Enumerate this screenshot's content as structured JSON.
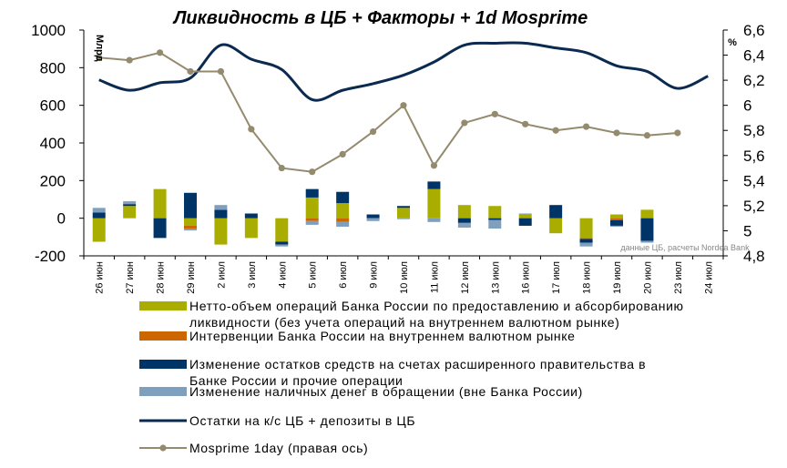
{
  "colors": {
    "net": "#a8ad00",
    "interv": "#cc6600",
    "gov": "#003366",
    "cash": "#7f9fbf",
    "balance": "#0a2a50",
    "mosprime": "#948a6e"
  },
  "chart_data": {
    "type": "bar",
    "title": "Ликвидность в ЦБ + Факторы + 1d Mosprime",
    "left_axis_unit": "Млрд",
    "right_axis_unit": "%",
    "source_note": "данные ЦБ, расчеты Nordea Bank",
    "ylim": [
      -200,
      1000
    ],
    "yticks": [
      "1000",
      "800",
      "600",
      "400",
      "200",
      "0",
      "-200"
    ],
    "y2lim": [
      4.8,
      6.6
    ],
    "y2ticks": [
      "6,6",
      "6,4",
      "6,2",
      "6",
      "5,8",
      "5,6",
      "5,4",
      "5,2",
      "5",
      "4,8"
    ],
    "categories": [
      "26 июн",
      "27 июн",
      "28 июн",
      "29 июн",
      "2 июл",
      "3 июл",
      "4 июл",
      "5 июл",
      "6 июл",
      "9 июл",
      "10 июл",
      "11 июл",
      "12 июл",
      "13 июл",
      "16 июл",
      "17 июл",
      "18 июл",
      "19 июл",
      "20 июл",
      "23 июл",
      "24 июл"
    ],
    "series": [
      {
        "name": "Нетто-объем операций Банка России по предоставлению и абсорбированию ликвидности (без учета операций на внутреннем валютном рынке)",
        "kind": "bar",
        "color_key": "net",
        "values": [
          -125,
          65,
          155,
          -40,
          -140,
          -105,
          -125,
          110,
          80,
          0,
          55,
          155,
          70,
          65,
          20,
          -80,
          -105,
          20,
          45,
          0,
          0
        ]
      },
      {
        "name": "Интервенции Банка России на внутреннем валютном рынке",
        "kind": "bar",
        "color_key": "interv",
        "values": [
          0,
          0,
          0,
          -15,
          0,
          0,
          0,
          -15,
          -20,
          0,
          0,
          0,
          0,
          0,
          0,
          0,
          -5,
          -10,
          0,
          0,
          0
        ]
      },
      {
        "name": "Изменение остатков средств на счетах расширенного правительства в Банке России и прочие операции",
        "kind": "bar",
        "color_key": "gov",
        "values": [
          30,
          10,
          -105,
          135,
          45,
          25,
          -15,
          45,
          60,
          20,
          10,
          40,
          -25,
          -10,
          -40,
          70,
          -20,
          -30,
          -120,
          0,
          0
        ]
      },
      {
        "name": "Изменение наличных денег в обращении (вне Банка России)",
        "kind": "bar",
        "color_key": "cash",
        "values": [
          25,
          15,
          0,
          -10,
          25,
          0,
          -10,
          -20,
          -25,
          -15,
          -5,
          -20,
          -25,
          -45,
          5,
          0,
          -20,
          -5,
          -10,
          0,
          0
        ]
      },
      {
        "name": "Остатки на к/с ЦБ + депозиты в ЦБ",
        "kind": "line",
        "color_key": "balance",
        "axis": "left",
        "values": [
          735,
          680,
          720,
          745,
          920,
          845,
          790,
          630,
          680,
          715,
          760,
          830,
          920,
          930,
          930,
          905,
          880,
          810,
          780,
          690,
          755
        ]
      },
      {
        "name": "Mosprime 1day (правая ось)",
        "kind": "line",
        "color_key": "mosprime",
        "axis": "right",
        "values": [
          6.38,
          6.36,
          6.42,
          6.27,
          6.27,
          5.81,
          5.5,
          5.47,
          5.61,
          5.79,
          6.0,
          5.52,
          5.86,
          5.93,
          5.85,
          5.8,
          5.83,
          5.78,
          5.76,
          5.78,
          null
        ]
      }
    ]
  }
}
